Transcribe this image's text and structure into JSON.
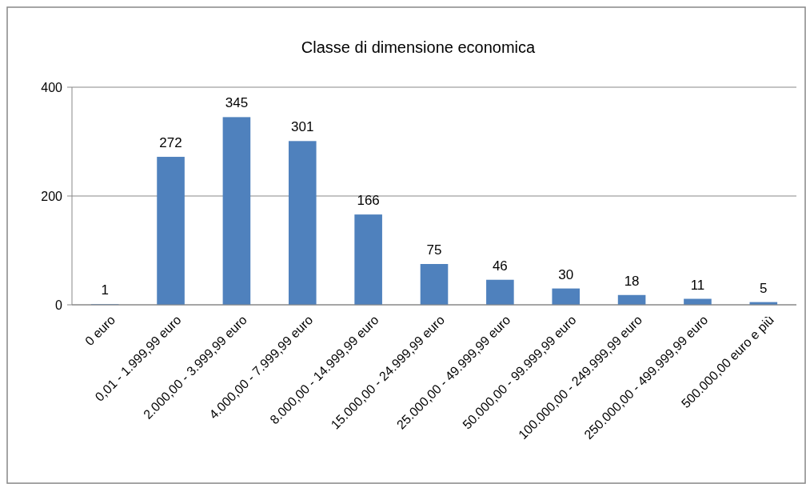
{
  "chart_data": {
    "type": "bar",
    "title": "Classe di dimensione economica",
    "categories": [
      "0 euro",
      "0,01 - 1.999,99 euro",
      "2.000,00 - 3.999,99 euro",
      "4.000,00 - 7.999,99 euro",
      "8.000,00 - 14.999,99 euro",
      "15.000,00 - 24.999,99 euro",
      "25.000,00 - 49.999,99 euro",
      "50.000,00 - 99.999,99 euro",
      "100.000,00 - 249.999,99 euro",
      "250.000,00 - 499.999,99 euro",
      "500.000,00 euro e più"
    ],
    "values": [
      1,
      272,
      345,
      301,
      166,
      75,
      46,
      30,
      18,
      11,
      5
    ],
    "color": "#4f81bd",
    "ylim": [
      0,
      400
    ],
    "yticks": [
      0,
      200,
      400
    ],
    "grid": "y",
    "data_labels": true
  }
}
